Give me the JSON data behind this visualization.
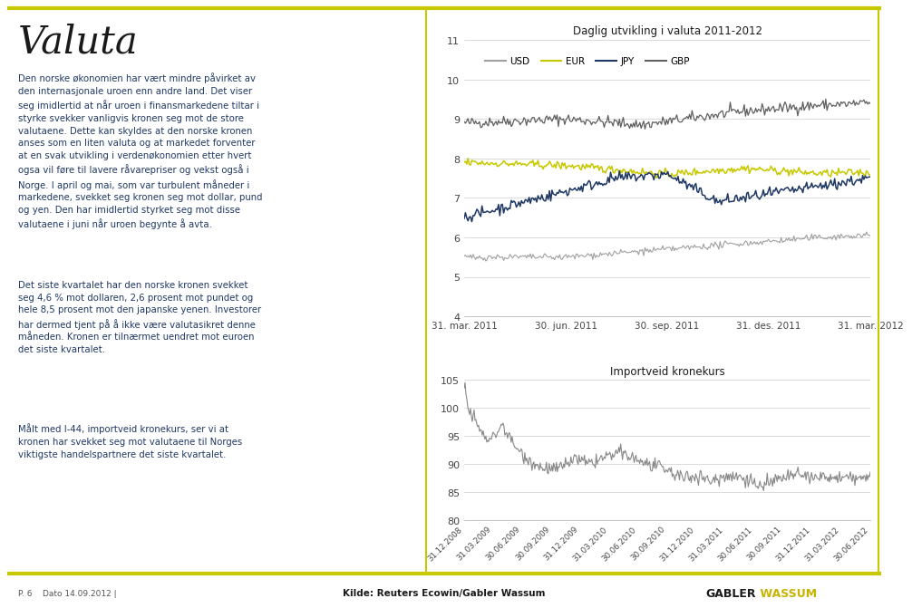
{
  "title": "Valuta",
  "para1": "Den norske økonomien har vært mindre påvirket av\nden internasjonale uroen enn andre land. Det viser\nseg imidlertid at når uroen i finansmarkedene tiltar i\nstyrke svekker vanligvis kronen seg mot de store\nvalutaene. Dette kan skyldes at den norske kronen\nanses som en liten valuta og at markedet forventer\nat en svak utvikling i verdenøkonomien etter hvert\nogsa vil føre til lavere råvarepriser og vekst også i\nNorge. I april og mai, som var turbulent måneder i\nmarkedene, svekket seg kronen seg mot dollar, pund\nog yen. Den har imidlertid styrket seg mot disse\nvalutaene i juni når uroen begynte å avta.",
  "para2": "Det siste kvartalet har den norske kronen svekket\nseg 4,6 % mot dollaren, 2,6 prosent mot pundet og\nhele 8,5 prosent mot den japanske yenen. Investorer\nhar dermed tjent på å ikke være valutasikret denne\nmåneden. Kronen er tilnærmet uendret mot euroen\ndet siste kvartalet.",
  "para3": "Målt med I-44, importveid kronekurs, ser vi at\nkronen har svekket seg mot valutaene til Norges\nviktigste handelspartnere det siste kvartalet.",
  "chart1_title": "Daglig utvikling i valuta 2011-2012",
  "chart1_ylim": [
    4,
    11
  ],
  "chart1_yticks": [
    4,
    5,
    6,
    7,
    8,
    9,
    10,
    11
  ],
  "chart1_xtick_labels": [
    "31. mar. 2011",
    "30. jun. 2011",
    "30. sep. 2011",
    "31. des. 2011",
    "31. mar. 2012"
  ],
  "chart1_legend_labels": [
    "USD",
    "EUR",
    "JPY",
    "GBP"
  ],
  "usd_color": "#a0a0a0",
  "eur_color": "#c8c800",
  "jpy_color": "#1f3864",
  "gbp_color": "#606060",
  "chart2_title": "Importveid kronekurs",
  "chart2_ylim": [
    80,
    105
  ],
  "chart2_yticks": [
    80,
    85,
    90,
    95,
    100,
    105
  ],
  "chart2_xtick_labels": [
    "31.12.2008",
    "31.03.2009",
    "30.06.2009",
    "30.09.2009",
    "31.12.2009",
    "31.03.2010",
    "30.06.2010",
    "30.09.2010",
    "31.12.2010",
    "31.03.2011",
    "30.06.2011",
    "30.09.2011",
    "31.12.2011",
    "31.03.2012",
    "30.06.2012"
  ],
  "chart2_color": "#888888",
  "footer_left": "P. 6    Dato 14.09.2012 |",
  "footer_center": "Kilde: Reuters Ecowin/Gabler Wassum",
  "footer_right1": "GABLER",
  "footer_right2": " WASSUM",
  "border_color": "#c8c800",
  "bg_color": "#ffffff",
  "text_color": "#1f3864",
  "grid_color": "#cccccc",
  "spine_color": "#aaaaaa"
}
